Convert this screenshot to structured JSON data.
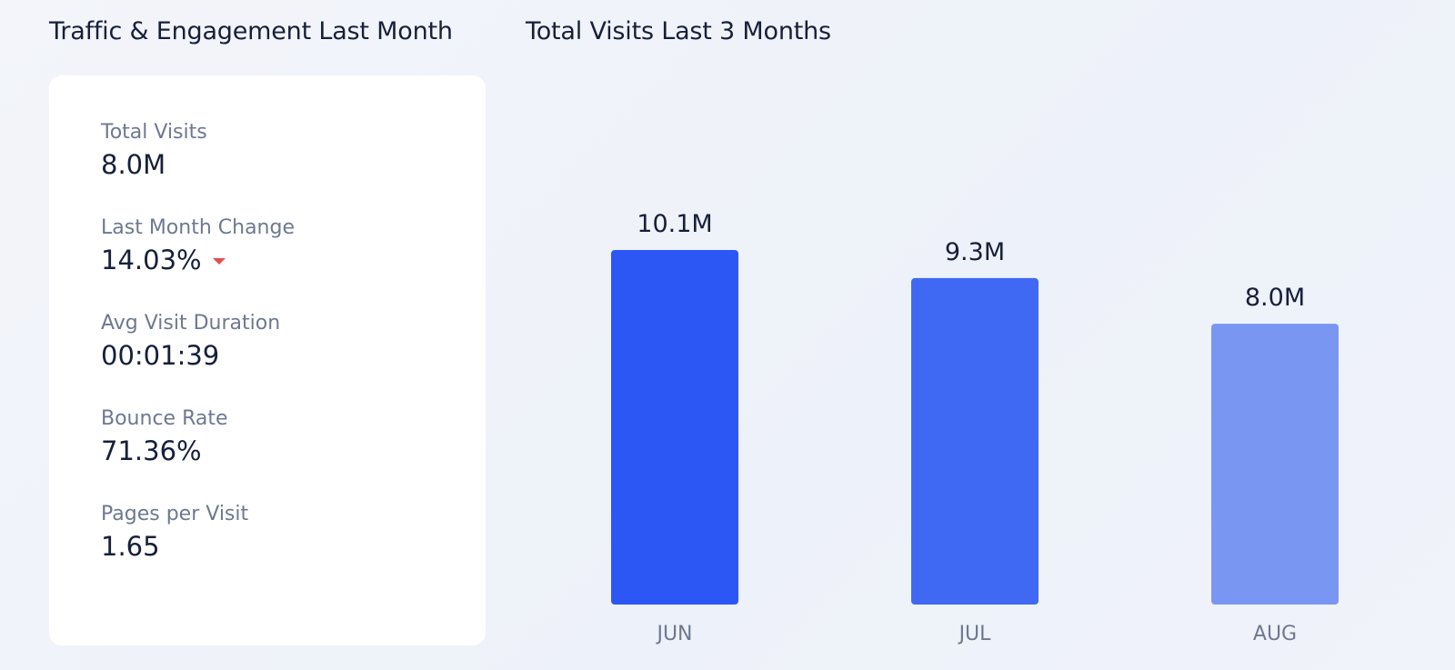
{
  "headings": {
    "left": "Traffic & Engagement Last Month",
    "right": "Total Visits Last 3 Months"
  },
  "metrics": [
    {
      "label": "Total Visits",
      "value": "8.0M"
    },
    {
      "label": "Last Month Change",
      "value": "14.03%",
      "trend_icon": "caret-down-icon",
      "trend_color": "#e0504f"
    },
    {
      "label": "Avg Visit Duration",
      "value": "00:01:39"
    },
    {
      "label": "Bounce Rate",
      "value": "71.36%"
    },
    {
      "label": "Pages per Visit",
      "value": "1.65"
    }
  ],
  "chart_data": {
    "type": "bar",
    "title": "Total Visits Last 3 Months",
    "categories": [
      "JUN",
      "JUL",
      "AUG"
    ],
    "values": [
      10.1,
      9.3,
      8.0
    ],
    "data_labels": [
      "10.1M",
      "9.3M",
      "8.0M"
    ],
    "unit": "M",
    "colors": [
      "#2d57f5",
      "#3f68f3",
      "#7a96f3"
    ],
    "ylim": [
      0,
      10.1
    ],
    "grid": false,
    "legend": "none"
  }
}
